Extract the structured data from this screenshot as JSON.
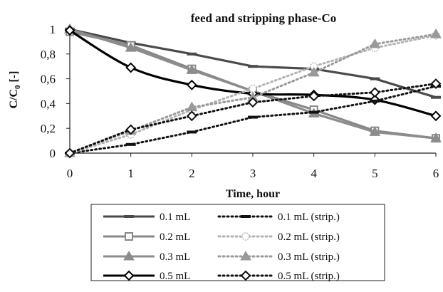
{
  "chart_data": {
    "type": "line",
    "title": "feed and stripping phase-Co",
    "xlabel": "Time, hour",
    "ylabel_main": "C/C",
    "ylabel_sub": "0",
    "ylabel_tail": " [-]",
    "x": [
      0,
      1,
      2,
      3,
      4,
      5,
      6
    ],
    "xlim": [
      0,
      6
    ],
    "ylim": [
      0,
      1
    ],
    "xticks": [
      "0",
      "1",
      "2",
      "3",
      "4",
      "5",
      "6"
    ],
    "yticks": [
      "0",
      "0,2",
      "0,4",
      "0,6",
      "0,8",
      "1"
    ],
    "grid": false,
    "legend_position": "bottom",
    "series": [
      {
        "name": "0.1 mL",
        "values": [
          1.0,
          0.89,
          0.8,
          0.7,
          0.68,
          0.6,
          0.45
        ],
        "color": "#4a4a4a",
        "dash": "solid",
        "marker": "dash",
        "smooth": false
      },
      {
        "name": "0.1 mL (strip.)",
        "values": [
          0.0,
          0.07,
          0.17,
          0.29,
          0.33,
          0.42,
          0.54
        ],
        "color": "#111111",
        "dash": "dotted",
        "marker": "dash",
        "smooth": false
      },
      {
        "name": "0.2 mL",
        "values": [
          0.98,
          0.87,
          0.68,
          0.5,
          0.35,
          0.18,
          0.12
        ],
        "color": "#888888",
        "dash": "solid",
        "marker": "square",
        "smooth": false
      },
      {
        "name": "0.2 mL (strip.)",
        "values": [
          0.0,
          0.15,
          0.35,
          0.52,
          0.7,
          0.85,
          0.95
        ],
        "color": "#b3b3b3",
        "dash": "dotted",
        "marker": "circle",
        "smooth": false
      },
      {
        "name": "0.3 mL",
        "values": [
          1.0,
          0.85,
          0.67,
          0.5,
          0.32,
          0.17,
          0.12
        ],
        "color": "#8c8c8c",
        "dash": "solid",
        "marker": "triangle",
        "smooth": false
      },
      {
        "name": "0.3 mL (strip.)",
        "values": [
          0.0,
          0.18,
          0.37,
          0.45,
          0.65,
          0.88,
          0.96
        ],
        "color": "#999999",
        "dash": "dotted",
        "marker": "triangle",
        "smooth": false
      },
      {
        "name": "0.5 mL",
        "values": [
          0.99,
          0.69,
          0.55,
          0.48,
          0.47,
          0.43,
          0.3
        ],
        "color": "#000000",
        "dash": "solid",
        "marker": "diamond",
        "smooth": true
      },
      {
        "name": "0.5 mL (strip.)",
        "values": [
          0.0,
          0.19,
          0.3,
          0.41,
          0.46,
          0.49,
          0.56
        ],
        "color": "#111111",
        "dash": "dotted",
        "marker": "diamond",
        "smooth": false
      }
    ]
  }
}
